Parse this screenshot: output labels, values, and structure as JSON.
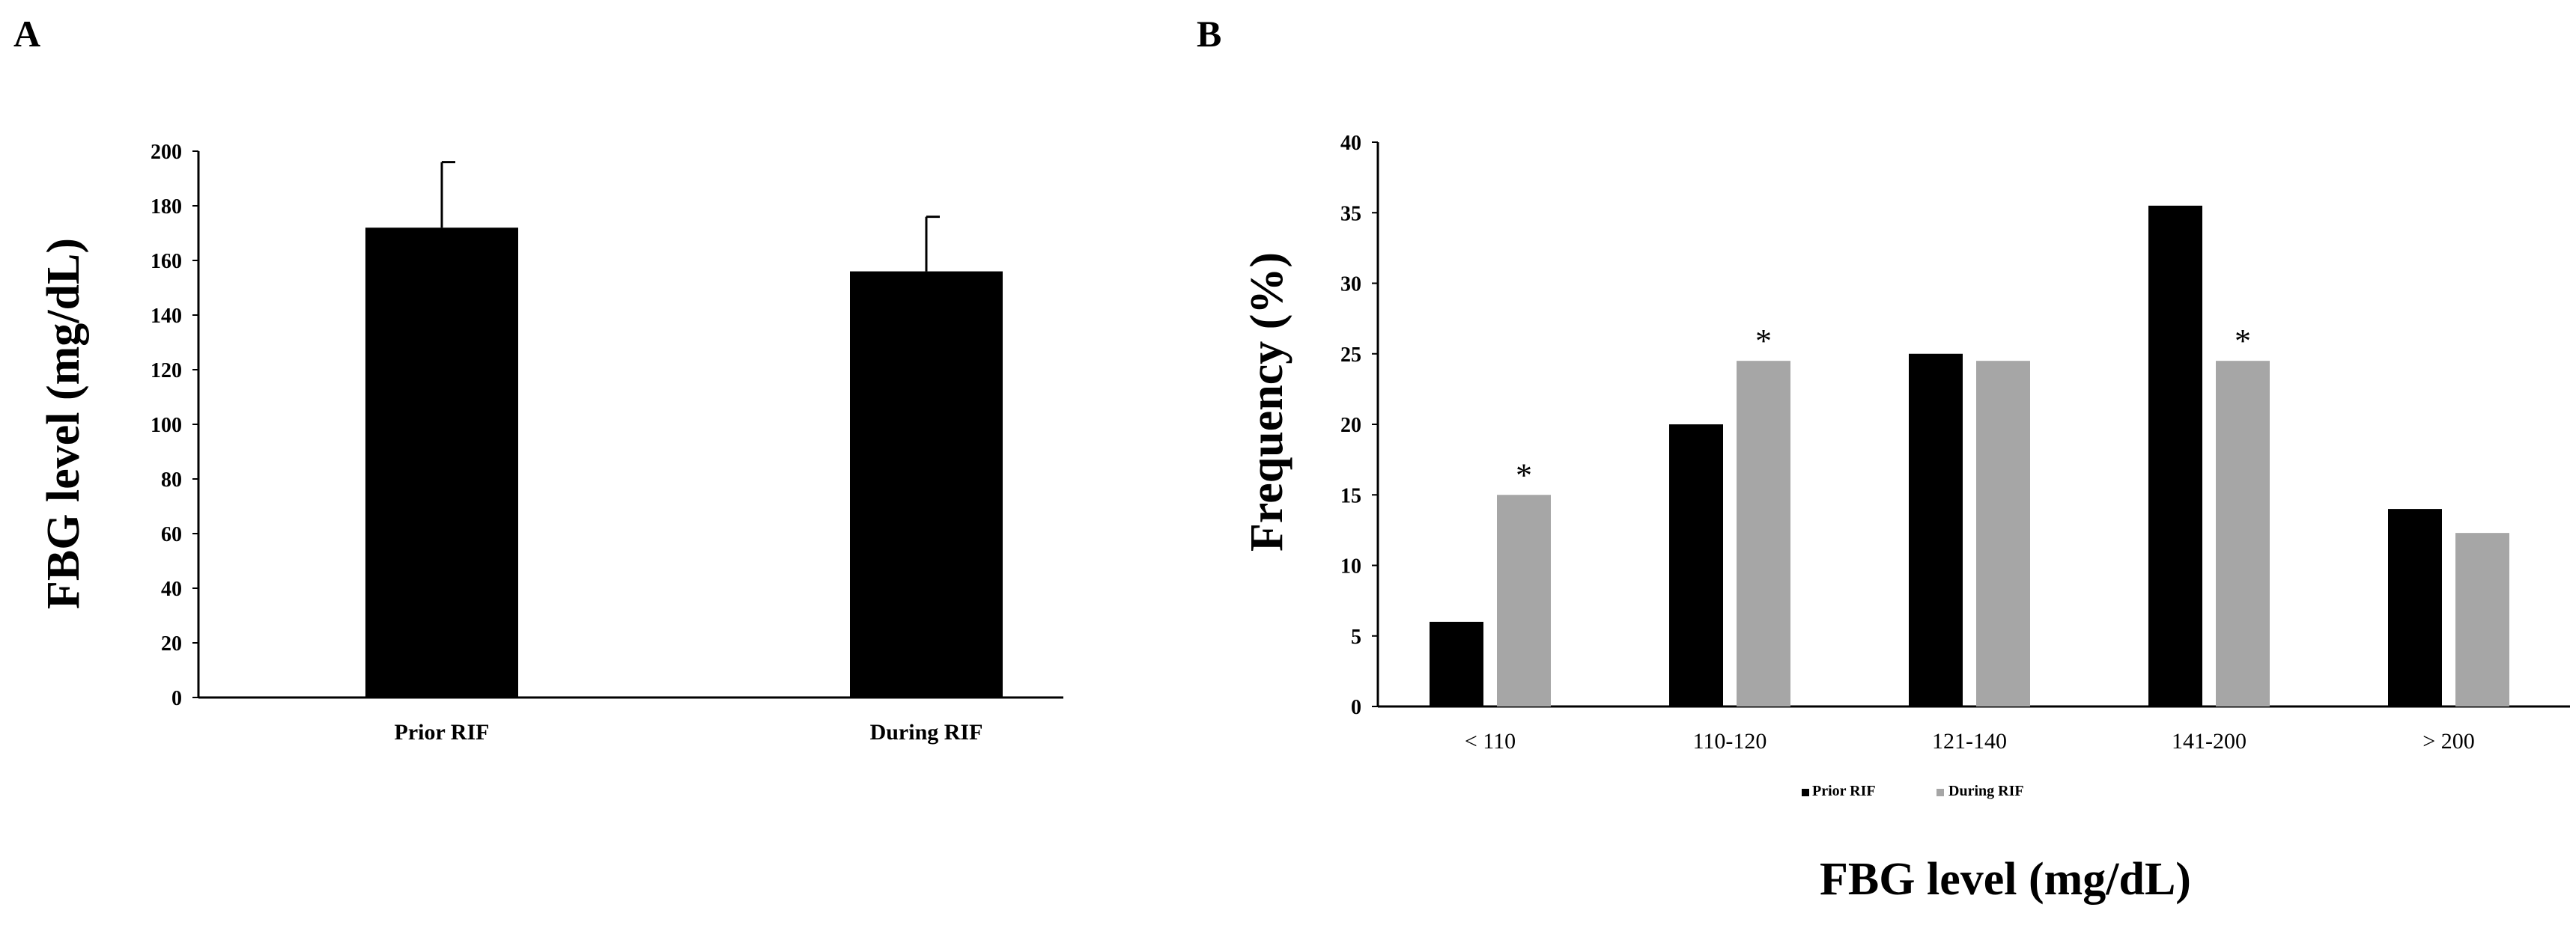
{
  "colors": {
    "prior": "#000000",
    "during": "#a6a6a6",
    "axis": "#000000"
  },
  "chart_data": [
    {
      "panel": "A",
      "type": "bar",
      "categories": [
        "Prior RIF",
        "During RIF"
      ],
      "values": [
        172,
        156
      ],
      "errors": [
        24,
        20
      ],
      "ylabel": "FBG level (mg/dL)",
      "xlabel": "",
      "ylim": [
        0,
        200
      ],
      "yticks": [
        "0",
        "20",
        "40",
        "60",
        "80",
        "100",
        "120",
        "140",
        "160",
        "180",
        "200"
      ]
    },
    {
      "panel": "B",
      "type": "bar",
      "categories": [
        "< 110",
        "110-120",
        "121-140",
        "141-200",
        "> 200"
      ],
      "series": [
        {
          "name": "Prior RIF",
          "values": [
            6,
            20,
            25,
            35.5,
            14
          ]
        },
        {
          "name": "During RIF",
          "values": [
            15,
            24.5,
            24.5,
            24.5,
            12.3
          ]
        }
      ],
      "significance": [
        {
          "category": "< 110",
          "series": "During RIF",
          "mark": "*"
        },
        {
          "category": "110-120",
          "series": "During RIF",
          "mark": "*"
        },
        {
          "category": "141-200",
          "series": "During RIF",
          "mark": "*"
        }
      ],
      "ylabel": "Frequency (%)",
      "xlabel": "FBG level (mg/dL)",
      "ylim": [
        0,
        40
      ],
      "yticks": [
        "0",
        "5",
        "10",
        "15",
        "20",
        "25",
        "30",
        "35",
        "40"
      ],
      "legend": [
        "Prior RIF",
        "During RIF"
      ],
      "legend_position": "bottom"
    }
  ]
}
